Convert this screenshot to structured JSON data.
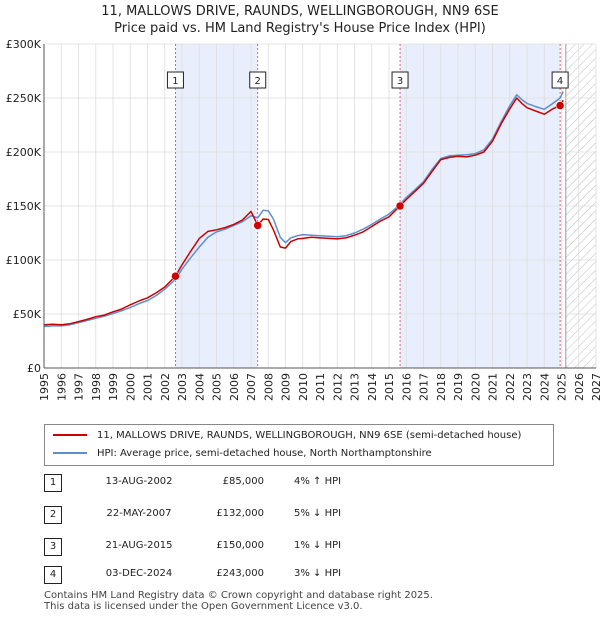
{
  "title_line1": "11, MALLOWS DRIVE, RAUNDS, WELLINGBOROUGH, NN9 6SE",
  "title_line2": "Price paid vs. HM Land Registry's House Price Index (HPI)",
  "colors": {
    "property": "#cc0000",
    "hpi": "#5b8fcf",
    "shade": "#e8eefb",
    "grid": "#dddddd",
    "marker_line": "#dd4444"
  },
  "legend": {
    "property_label": "11, MALLOWS DRIVE, RAUNDS, WELLINGBOROUGH, NN9 6SE (semi-detached house)",
    "hpi_label": "HPI: Average price, semi-detached house, North Northamptonshire"
  },
  "transactions": [
    {
      "num": "1",
      "date": "13-AUG-2002",
      "price": "£85,000",
      "hpi": "4% ↑ HPI"
    },
    {
      "num": "2",
      "date": "22-MAY-2007",
      "price": "£132,000",
      "hpi": "5% ↓ HPI"
    },
    {
      "num": "3",
      "date": "21-AUG-2015",
      "price": "£150,000",
      "hpi": "1% ↓ HPI"
    },
    {
      "num": "4",
      "date": "03-DEC-2024",
      "price": "£243,000",
      "hpi": "3% ↓ HPI"
    }
  ],
  "footer": {
    "line1": "Contains HM Land Registry data © Crown copyright and database right 2025.",
    "line2": "This data is licensed under the Open Government Licence v3.0."
  },
  "chart_data": {
    "type": "line",
    "title": "Price paid vs. HM Land Registry's House Price Index (HPI)",
    "xlim": [
      1995,
      2027
    ],
    "ylim": [
      0,
      300000
    ],
    "x_ticks": [
      1995,
      1996,
      1997,
      1998,
      1999,
      2000,
      2001,
      2002,
      2003,
      2004,
      2005,
      2006,
      2007,
      2008,
      2009,
      2010,
      2011,
      2012,
      2013,
      2014,
      2015,
      2016,
      2017,
      2018,
      2019,
      2020,
      2021,
      2022,
      2023,
      2024,
      2025,
      2026,
      2027
    ],
    "y_ticks": [
      0,
      50000,
      100000,
      150000,
      200000,
      250000,
      300000
    ],
    "y_tick_labels": [
      "£0",
      "£50K",
      "£100K",
      "£150K",
      "£200K",
      "£250K",
      "£300K"
    ],
    "forecast_start": 2025.25,
    "shaded_ranges": [
      [
        2002.62,
        2007.39
      ],
      [
        2015.64,
        2024.92
      ]
    ],
    "series": [
      {
        "name": "11, MALLOWS DRIVE, RAUNDS, WELLINGBOROUGH, NN9 6SE (semi-detached house)",
        "color": "#cc0000",
        "x": [
          1995.0,
          1995.5,
          1996.0,
          1996.5,
          1997.0,
          1997.5,
          1998.0,
          1998.5,
          1999.0,
          1999.5,
          2000.0,
          2000.5,
          2001.0,
          2001.5,
          2002.0,
          2002.62,
          2003.0,
          2003.5,
          2004.0,
          2004.5,
          2005.0,
          2005.5,
          2006.0,
          2006.5,
          2007.0,
          2007.39,
          2007.7,
          2008.0,
          2008.3,
          2008.7,
          2009.0,
          2009.3,
          2009.7,
          2010.0,
          2010.5,
          2011.0,
          2011.5,
          2012.0,
          2012.5,
          2013.0,
          2013.5,
          2014.0,
          2014.5,
          2015.0,
          2015.64,
          2016.0,
          2016.5,
          2017.0,
          2017.5,
          2018.0,
          2018.5,
          2019.0,
          2019.5,
          2020.0,
          2020.5,
          2021.0,
          2021.5,
          2022.0,
          2022.4,
          2022.7,
          2023.0,
          2023.5,
          2024.0,
          2024.5,
          2024.92,
          2025.1
        ],
        "y": [
          40000,
          40500,
          40000,
          41000,
          43000,
          45000,
          47500,
          49000,
          52000,
          54500,
          58500,
          62000,
          65000,
          69500,
          75000,
          85000,
          95500,
          108000,
          120000,
          126500,
          128000,
          130000,
          133000,
          137000,
          145000,
          132000,
          138000,
          137500,
          128000,
          112000,
          111000,
          117000,
          119500,
          120000,
          121000,
          120500,
          120000,
          119500,
          120500,
          123000,
          126000,
          131000,
          136000,
          140000,
          150000,
          156000,
          163500,
          171000,
          182000,
          193000,
          195000,
          196000,
          195500,
          197000,
          200000,
          210000,
          226000,
          240000,
          250000,
          245000,
          241000,
          238000,
          235000,
          240000,
          243000,
          248000
        ]
      },
      {
        "name": "HPI: Average price, semi-detached house, North Northamptonshire",
        "color": "#5b8fcf",
        "x": [
          1995.0,
          1995.5,
          1996.0,
          1996.5,
          1997.0,
          1997.5,
          1998.0,
          1998.5,
          1999.0,
          1999.5,
          2000.0,
          2000.5,
          2001.0,
          2001.5,
          2002.0,
          2002.62,
          2003.0,
          2003.5,
          2004.0,
          2004.5,
          2005.0,
          2005.5,
          2006.0,
          2006.5,
          2007.0,
          2007.39,
          2007.7,
          2008.0,
          2008.3,
          2008.7,
          2009.0,
          2009.3,
          2009.7,
          2010.0,
          2010.5,
          2011.0,
          2011.5,
          2012.0,
          2012.5,
          2013.0,
          2013.5,
          2014.0,
          2014.5,
          2015.0,
          2015.64,
          2016.0,
          2016.5,
          2017.0,
          2017.5,
          2018.0,
          2018.5,
          2019.0,
          2019.5,
          2020.0,
          2020.5,
          2021.0,
          2021.5,
          2022.0,
          2022.4,
          2022.7,
          2023.0,
          2023.5,
          2024.0,
          2024.5,
          2024.92,
          2025.1
        ],
        "y": [
          38500,
          39000,
          39000,
          40000,
          42000,
          44000,
          46000,
          48000,
          50500,
          53000,
          56000,
          59500,
          62500,
          67000,
          73000,
          82000,
          91500,
          102000,
          112000,
          121000,
          126000,
          128500,
          132000,
          135500,
          141000,
          139000,
          146000,
          145500,
          138000,
          121000,
          116000,
          120500,
          122500,
          123500,
          123000,
          122500,
          122000,
          121500,
          122500,
          125000,
          128500,
          133000,
          138000,
          142500,
          151500,
          158000,
          165000,
          172500,
          184000,
          194000,
          196500,
          197000,
          197500,
          198500,
          202000,
          212000,
          228000,
          243000,
          253000,
          248500,
          245000,
          242000,
          239500,
          245000,
          250000,
          256000
        ]
      }
    ],
    "transactions": [
      {
        "label": "1",
        "x": 2002.62,
        "y": 85000
      },
      {
        "label": "2",
        "x": 2007.39,
        "y": 132000
      },
      {
        "label": "3",
        "x": 2015.64,
        "y": 150000
      },
      {
        "label": "4",
        "x": 2024.92,
        "y": 243000
      }
    ]
  }
}
